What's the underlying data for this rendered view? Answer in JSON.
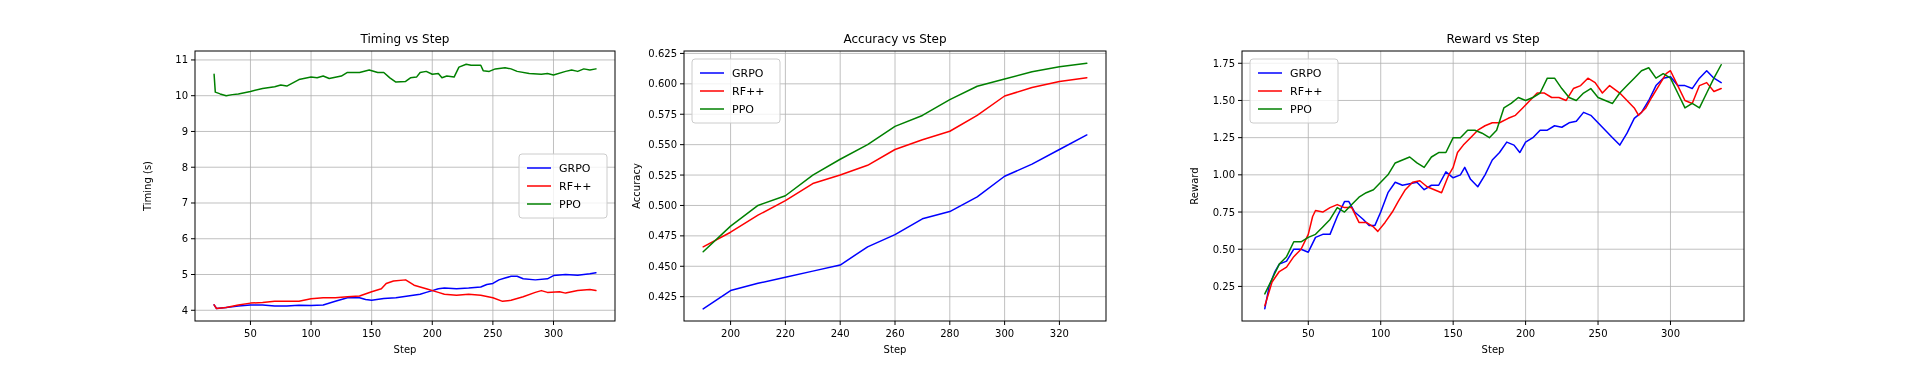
{
  "chart_data": [
    {
      "type": "line",
      "title": "Timing vs Step",
      "xlabel": "Step",
      "ylabel": "Timing (s)",
      "xlim": [
        4.25,
        350.75
      ],
      "ylim": [
        3.7,
        11.25
      ],
      "xticks": [
        50,
        100,
        150,
        200,
        250,
        300
      ],
      "yticks": [
        4,
        5,
        6,
        7,
        8,
        9,
        10,
        11
      ],
      "grid": true,
      "legend": "right",
      "series": [
        {
          "name": "GRPO",
          "color": "#0000ff",
          "x": [
            20,
            22,
            30,
            40,
            50,
            60,
            70,
            80,
            90,
            100,
            110,
            120,
            130,
            140,
            145,
            150,
            160,
            170,
            180,
            190,
            195,
            200,
            205,
            210,
            220,
            230,
            240,
            245,
            250,
            255,
            260,
            265,
            270,
            275,
            285,
            295,
            300,
            310,
            320,
            330,
            335
          ],
          "values": [
            4.15,
            4.05,
            4.08,
            4.12,
            4.15,
            4.15,
            4.12,
            4.12,
            4.14,
            4.13,
            4.15,
            4.25,
            4.35,
            4.35,
            4.3,
            4.28,
            4.33,
            4.35,
            4.4,
            4.45,
            4.5,
            4.55,
            4.6,
            4.62,
            4.6,
            4.62,
            4.65,
            4.72,
            4.75,
            4.85,
            4.9,
            4.95,
            4.95,
            4.88,
            4.85,
            4.88,
            4.97,
            5.0,
            4.98,
            5.02,
            5.05
          ]
        },
        {
          "name": "RF++",
          "color": "#ff0000",
          "x": [
            20,
            22,
            30,
            40,
            50,
            60,
            70,
            80,
            90,
            100,
            110,
            120,
            130,
            140,
            150,
            158,
            162,
            168,
            178,
            185,
            195,
            205,
            210,
            220,
            230,
            240,
            250,
            258,
            265,
            275,
            285,
            290,
            295,
            305,
            310,
            320,
            330,
            335
          ],
          "values": [
            4.15,
            4.05,
            4.08,
            4.15,
            4.2,
            4.22,
            4.25,
            4.25,
            4.25,
            4.32,
            4.35,
            4.35,
            4.38,
            4.4,
            4.52,
            4.6,
            4.75,
            4.82,
            4.85,
            4.7,
            4.6,
            4.5,
            4.45,
            4.42,
            4.45,
            4.42,
            4.35,
            4.25,
            4.28,
            4.38,
            4.5,
            4.55,
            4.5,
            4.52,
            4.48,
            4.55,
            4.58,
            4.55
          ]
        },
        {
          "name": "PPO",
          "color": "#008000",
          "x": [
            20,
            21,
            25,
            30,
            35,
            40,
            50,
            60,
            70,
            75,
            80,
            90,
            100,
            105,
            110,
            115,
            125,
            130,
            140,
            148,
            155,
            160,
            165,
            170,
            178,
            182,
            187,
            190,
            195,
            200,
            205,
            208,
            212,
            218,
            222,
            228,
            232,
            240,
            242,
            247,
            252,
            260,
            265,
            270,
            280,
            290,
            295,
            300,
            310,
            315,
            320,
            325,
            330,
            335
          ],
          "values": [
            10.6,
            10.1,
            10.05,
            10.0,
            10.03,
            10.05,
            10.12,
            10.2,
            10.25,
            10.3,
            10.27,
            10.45,
            10.52,
            10.5,
            10.55,
            10.48,
            10.55,
            10.65,
            10.65,
            10.72,
            10.65,
            10.65,
            10.5,
            10.38,
            10.4,
            10.5,
            10.52,
            10.65,
            10.68,
            10.6,
            10.62,
            10.5,
            10.55,
            10.52,
            10.8,
            10.88,
            10.85,
            10.85,
            10.7,
            10.68,
            10.75,
            10.78,
            10.75,
            10.68,
            10.62,
            10.6,
            10.62,
            10.58,
            10.68,
            10.72,
            10.68,
            10.75,
            10.72,
            10.75
          ]
        }
      ]
    },
    {
      "type": "line",
      "title": "Accuracy vs Step",
      "xlabel": "Step",
      "ylabel": "Accuracy",
      "xlim": [
        183,
        337
      ],
      "ylim": [
        0.405,
        0.627
      ],
      "xticks": [
        200,
        220,
        240,
        260,
        280,
        300,
        320
      ],
      "yticks": [
        {
          "value": 0.425,
          "label": "0.425"
        },
        {
          "value": 0.45,
          "label": "0.450"
        },
        {
          "value": 0.475,
          "label": "0.475"
        },
        {
          "value": 0.5,
          "label": "0.500"
        },
        {
          "value": 0.525,
          "label": "0.525"
        },
        {
          "value": 0.55,
          "label": "0.550"
        },
        {
          "value": 0.575,
          "label": "0.575"
        },
        {
          "value": 0.6,
          "label": "0.600"
        },
        {
          "value": 0.625,
          "label": "0.625"
        }
      ],
      "grid": true,
      "legend": "top left",
      "x": [
        190,
        200,
        210,
        220,
        230,
        240,
        250,
        260,
        270,
        280,
        290,
        300,
        310,
        320,
        330
      ],
      "series": [
        {
          "name": "GRPO",
          "color": "#0000ff",
          "values": [
            0.415,
            0.43,
            0.436,
            0.441,
            0.446,
            0.451,
            0.466,
            0.476,
            0.489,
            0.495,
            0.507,
            0.524,
            0.534,
            0.546,
            0.558
          ]
        },
        {
          "name": "RF++",
          "color": "#ff0000",
          "values": [
            0.466,
            0.478,
            0.492,
            0.504,
            0.518,
            0.525,
            0.533,
            0.546,
            0.554,
            0.561,
            0.574,
            0.59,
            0.597,
            0.602,
            0.605
          ]
        },
        {
          "name": "PPO",
          "color": "#008000",
          "values": [
            0.462,
            0.483,
            0.5,
            0.508,
            0.525,
            0.538,
            0.55,
            0.565,
            0.574,
            0.587,
            0.598,
            0.604,
            0.61,
            0.614,
            0.617
          ]
        }
      ]
    },
    {
      "type": "line",
      "title": "Reward vs Step",
      "xlabel": "Step",
      "ylabel": "Reward",
      "xlim": [
        4.25,
        350.75
      ],
      "ylim": [
        0.0175,
        1.8325
      ],
      "xticks": [
        50,
        100,
        150,
        200,
        250,
        300
      ],
      "yticks": [
        {
          "value": 0.25,
          "label": "0.25"
        },
        {
          "value": 0.5,
          "label": "0.50"
        },
        {
          "value": 0.75,
          "label": "0.75"
        },
        {
          "value": 1,
          "label": "1.00"
        },
        {
          "value": 1.25,
          "label": "1.25"
        },
        {
          "value": 1.5,
          "label": "1.50"
        },
        {
          "value": 1.75,
          "label": "1.75"
        }
      ],
      "grid": true,
      "legend": "top left",
      "series": [
        {
          "name": "GRPO",
          "color": "#0000ff",
          "x": [
            20,
            23,
            27,
            30,
            35,
            40,
            45,
            50,
            55,
            60,
            65,
            70,
            75,
            78,
            82,
            88,
            92,
            96,
            100,
            105,
            110,
            115,
            125,
            130,
            135,
            140,
            145,
            150,
            155,
            158,
            162,
            167,
            172,
            177,
            182,
            187,
            192,
            196,
            200,
            205,
            210,
            215,
            220,
            225,
            230,
            235,
            240,
            245,
            250,
            255,
            260,
            265,
            270,
            275,
            280,
            285,
            290,
            295,
            300,
            305,
            310,
            315,
            320,
            325,
            330,
            335
          ],
          "values": [
            0.1,
            0.25,
            0.35,
            0.4,
            0.42,
            0.5,
            0.5,
            0.48,
            0.58,
            0.6,
            0.6,
            0.72,
            0.82,
            0.82,
            0.75,
            0.7,
            0.66,
            0.66,
            0.75,
            0.88,
            0.95,
            0.93,
            0.95,
            0.9,
            0.93,
            0.93,
            1.02,
            0.98,
            1.0,
            1.05,
            0.97,
            0.92,
            1.0,
            1.1,
            1.15,
            1.22,
            1.2,
            1.15,
            1.22,
            1.25,
            1.3,
            1.3,
            1.33,
            1.32,
            1.35,
            1.36,
            1.42,
            1.4,
            1.35,
            1.3,
            1.25,
            1.2,
            1.28,
            1.38,
            1.42,
            1.5,
            1.6,
            1.65,
            1.66,
            1.6,
            1.6,
            1.58,
            1.65,
            1.7,
            1.65,
            1.62
          ]
        },
        {
          "name": "RF++",
          "color": "#ff0000",
          "x": [
            20,
            25,
            30,
            35,
            40,
            45,
            50,
            53,
            55,
            60,
            65,
            70,
            75,
            80,
            85,
            90,
            95,
            98,
            103,
            108,
            112,
            117,
            122,
            127,
            132,
            137,
            142,
            147,
            150,
            153,
            157,
            162,
            167,
            172,
            177,
            182,
            188,
            193,
            198,
            203,
            208,
            213,
            218,
            223,
            228,
            233,
            238,
            243,
            248,
            253,
            258,
            265,
            270,
            275,
            278,
            283,
            287,
            292,
            297,
            300,
            305,
            310,
            315,
            320,
            325,
            330,
            335
          ],
          "values": [
            0.12,
            0.28,
            0.35,
            0.38,
            0.45,
            0.5,
            0.6,
            0.72,
            0.76,
            0.75,
            0.78,
            0.8,
            0.78,
            0.78,
            0.68,
            0.68,
            0.65,
            0.62,
            0.68,
            0.75,
            0.82,
            0.9,
            0.95,
            0.96,
            0.92,
            0.9,
            0.88,
            1.0,
            1.05,
            1.15,
            1.2,
            1.25,
            1.3,
            1.33,
            1.35,
            1.35,
            1.38,
            1.4,
            1.45,
            1.5,
            1.55,
            1.55,
            1.52,
            1.52,
            1.5,
            1.58,
            1.6,
            1.65,
            1.62,
            1.55,
            1.6,
            1.55,
            1.5,
            1.45,
            1.4,
            1.45,
            1.52,
            1.6,
            1.68,
            1.7,
            1.6,
            1.5,
            1.48,
            1.6,
            1.62,
            1.56,
            1.58
          ]
        },
        {
          "name": "PPO",
          "color": "#008000",
          "x": [
            20,
            25,
            30,
            35,
            40,
            45,
            50,
            55,
            60,
            65,
            70,
            75,
            80,
            85,
            90,
            95,
            100,
            105,
            110,
            115,
            120,
            125,
            130,
            135,
            140,
            145,
            150,
            155,
            160,
            165,
            170,
            175,
            180,
            185,
            190,
            195,
            200,
            205,
            210,
            215,
            220,
            225,
            230,
            235,
            240,
            245,
            250,
            255,
            260,
            265,
            270,
            275,
            280,
            285,
            290,
            295,
            300,
            305,
            310,
            315,
            320,
            325,
            330,
            335
          ],
          "values": [
            0.2,
            0.3,
            0.4,
            0.45,
            0.55,
            0.55,
            0.58,
            0.6,
            0.65,
            0.7,
            0.78,
            0.75,
            0.8,
            0.85,
            0.88,
            0.9,
            0.95,
            1.0,
            1.08,
            1.1,
            1.12,
            1.08,
            1.05,
            1.12,
            1.15,
            1.15,
            1.25,
            1.25,
            1.3,
            1.3,
            1.28,
            1.25,
            1.3,
            1.45,
            1.48,
            1.52,
            1.5,
            1.52,
            1.55,
            1.65,
            1.65,
            1.58,
            1.52,
            1.5,
            1.55,
            1.58,
            1.52,
            1.5,
            1.48,
            1.55,
            1.6,
            1.65,
            1.7,
            1.72,
            1.65,
            1.68,
            1.65,
            1.55,
            1.45,
            1.48,
            1.45,
            1.55,
            1.65,
            1.74
          ]
        }
      ]
    }
  ]
}
